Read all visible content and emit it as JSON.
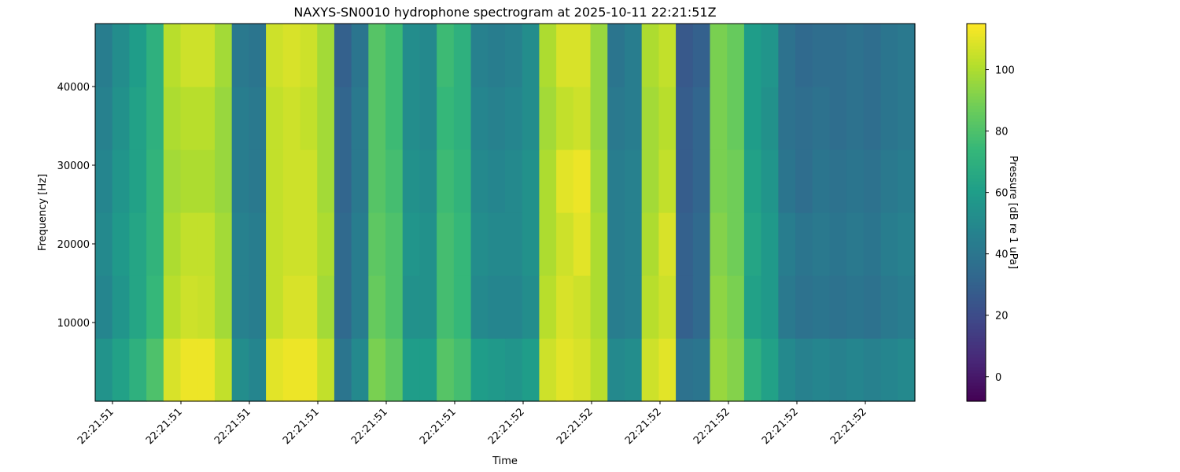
{
  "chart_data": {
    "type": "spectrogram",
    "title": "NAXYS-SN0010 hydrophone spectrogram at 2025-10-11 22:21:51Z",
    "x_label": "Time",
    "y_label": "Frequency [Hz]",
    "x_tick_labels": [
      "22:21:51",
      "22:21:51",
      "22:21:51",
      "22:21:51",
      "22:21:51",
      "22:21:51",
      "22:21:52",
      "22:21:52",
      "22:21:52",
      "22:21:52",
      "22:21:52",
      "22:21:52"
    ],
    "ylim": [
      0,
      48000
    ],
    "yticks": [
      10000,
      20000,
      30000,
      40000
    ],
    "colormap": "viridis",
    "colorbar_label": "Pressure [dB re 1 uPa]",
    "clim": [
      -8,
      115
    ],
    "cticks": [
      0,
      20,
      40,
      60,
      80,
      100
    ],
    "z": [
      [
        55,
        62,
        70,
        80,
        108,
        112,
        112,
        104,
        52,
        48,
        110,
        112,
        112,
        104,
        40,
        50,
        90,
        84,
        60,
        60,
        82,
        78,
        60,
        58,
        56,
        60,
        106,
        110,
        108,
        102,
        50,
        52,
        106,
        110,
        38,
        40,
        96,
        92,
        70,
        62,
        50,
        46,
        48,
        46,
        48,
        46,
        48,
        50
      ],
      [
        48,
        56,
        64,
        74,
        102,
        106,
        105,
        98,
        46,
        44,
        104,
        108,
        108,
        98,
        34,
        44,
        86,
        80,
        54,
        54,
        78,
        74,
        50,
        48,
        48,
        52,
        102,
        108,
        106,
        100,
        44,
        46,
        102,
        106,
        30,
        34,
        94,
        90,
        62,
        58,
        42,
        38,
        40,
        38,
        40,
        38,
        42,
        44
      ],
      [
        50,
        58,
        64,
        72,
        100,
        104,
        104,
        98,
        46,
        44,
        104,
        106,
        106,
        100,
        34,
        44,
        84,
        80,
        56,
        54,
        78,
        74,
        52,
        50,
        50,
        54,
        100,
        106,
        110,
        100,
        44,
        46,
        100,
        108,
        30,
        34,
        92,
        88,
        64,
        58,
        44,
        40,
        42,
        40,
        42,
        40,
        44,
        46
      ],
      [
        48,
        56,
        62,
        72,
        98,
        100,
        100,
        96,
        44,
        42,
        104,
        106,
        106,
        98,
        32,
        42,
        82,
        78,
        54,
        52,
        76,
        72,
        50,
        48,
        50,
        54,
        100,
        110,
        112,
        98,
        44,
        46,
        98,
        104,
        28,
        32,
        90,
        88,
        62,
        56,
        40,
        36,
        40,
        38,
        40,
        38,
        42,
        44
      ],
      [
        46,
        54,
        62,
        70,
        100,
        102,
        102,
        96,
        44,
        42,
        104,
        106,
        104,
        98,
        32,
        42,
        82,
        76,
        52,
        50,
        74,
        70,
        48,
        46,
        48,
        52,
        98,
        104,
        106,
        96,
        42,
        44,
        98,
        102,
        28,
        32,
        90,
        86,
        60,
        54,
        38,
        36,
        38,
        36,
        38,
        36,
        40,
        42
      ],
      [
        44,
        52,
        60,
        70,
        102,
        106,
        106,
        98,
        42,
        40,
        106,
        108,
        106,
        98,
        30,
        40,
        82,
        76,
        52,
        50,
        76,
        70,
        46,
        44,
        46,
        52,
        100,
        108,
        108,
        96,
        40,
        44,
        100,
        104,
        26,
        30,
        90,
        86,
        60,
        56,
        38,
        34,
        36,
        36,
        38,
        36,
        40,
        42
      ]
    ]
  }
}
